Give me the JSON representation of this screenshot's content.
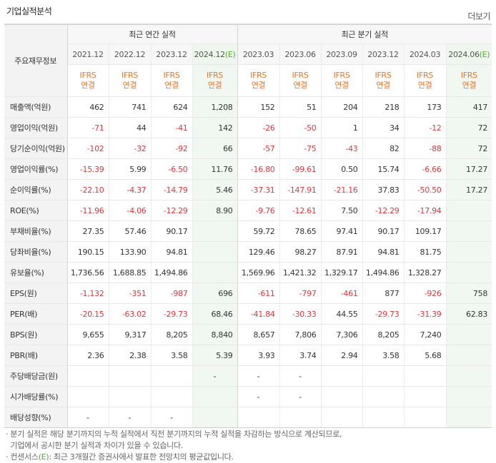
{
  "title": "기업실적분석",
  "more_label": "더보기",
  "header": {
    "corner": "주요재무정보",
    "annual_group": "최근 연간 실적",
    "quarter_group": "최근 분기 실적",
    "annual_periods": [
      "2021.12",
      "2022.12",
      "2023.12",
      "2024.12"
    ],
    "annual_estimate_mark": "(E)",
    "quarter_periods": [
      "2023.03",
      "2023.06",
      "2023.09",
      "2023.12",
      "2024.03",
      "2024.06"
    ],
    "quarter_estimate_mark": "(E)",
    "ifrs_line1": "IFRS",
    "ifrs_line2": "연결"
  },
  "rows": [
    {
      "label": "매출액(억원)",
      "values": [
        "462",
        "741",
        "624",
        "1,208",
        "152",
        "51",
        "204",
        "218",
        "173",
        "417"
      ]
    },
    {
      "label": "영업이익(억원)",
      "values": [
        "-71",
        "44",
        "-41",
        "142",
        "-26",
        "-50",
        "1",
        "34",
        "-12",
        "72"
      ]
    },
    {
      "label": "당기순이익(억원)",
      "values": [
        "-102",
        "-32",
        "-92",
        "66",
        "-57",
        "-75",
        "-43",
        "82",
        "-88",
        "72"
      ]
    },
    {
      "label": "영업이익률(%)",
      "values": [
        "-15.39",
        "5.99",
        "-6.50",
        "11.76",
        "-16.80",
        "-99.61",
        "0.50",
        "15.74",
        "-6.66",
        "17.27"
      ]
    },
    {
      "label": "순이익률(%)",
      "values": [
        "-22.10",
        "-4.37",
        "-14.79",
        "5.46",
        "-37.31",
        "-147.91",
        "-21.16",
        "37.83",
        "-50.50",
        "17.27"
      ]
    },
    {
      "label": "ROE(%)",
      "values": [
        "-11.96",
        "-4.06",
        "-12.29",
        "8.90",
        "-9.76",
        "-12.61",
        "7.50",
        "-12.29",
        "-17.94",
        ""
      ]
    },
    {
      "label": "부채비율(%)",
      "values": [
        "27.35",
        "57.46",
        "90.17",
        "",
        "59.72",
        "78.65",
        "97.41",
        "90.17",
        "109.17",
        ""
      ]
    },
    {
      "label": "당좌비율(%)",
      "values": [
        "190.15",
        "133.90",
        "94.81",
        "",
        "129.46",
        "98.27",
        "87.91",
        "94.81",
        "81.75",
        ""
      ]
    },
    {
      "label": "유보율(%)",
      "values": [
        "1,736.56",
        "1,688.85",
        "1,494.86",
        "",
        "1,569.96",
        "1,421.32",
        "1,329.17",
        "1,494.86",
        "1,328.27",
        ""
      ]
    },
    {
      "label": "EPS(원)",
      "values": [
        "-1,132",
        "-351",
        "-987",
        "696",
        "-611",
        "-797",
        "-461",
        "877",
        "-926",
        "758"
      ]
    },
    {
      "label": "PER(배)",
      "values": [
        "-20.15",
        "-63.02",
        "-29.73",
        "68.46",
        "-41.84",
        "-30.33",
        "44.55",
        "-29.73",
        "-31.39",
        "62.83"
      ]
    },
    {
      "label": "BPS(원)",
      "values": [
        "9,655",
        "9,317",
        "8,205",
        "8,840",
        "8,657",
        "7,806",
        "7,306",
        "8,205",
        "7,240",
        ""
      ]
    },
    {
      "label": "PBR(배)",
      "values": [
        "2.36",
        "2.38",
        "3.58",
        "5.39",
        "3.93",
        "3.74",
        "2.94",
        "3.58",
        "5.68",
        ""
      ]
    },
    {
      "label": "주당배당금(원)",
      "values": [
        "",
        "",
        "",
        "-",
        "-",
        "-",
        "",
        "",
        "",
        ""
      ]
    },
    {
      "label": "시가배당률(%)",
      "values": [
        "",
        "",
        "",
        "",
        "-",
        "-",
        "",
        "",
        "",
        ""
      ]
    },
    {
      "label": "배당성향(%)",
      "values": [
        "-",
        "-",
        "-",
        "",
        "",
        "",
        "",
        "",
        "",
        ""
      ]
    }
  ],
  "notes": [
    "· 분기 실적은 해당 분기까지의 누적 실적에서 직전 분기까지의 누적 실적을 차감하는 방식으로 계산되므로,",
    "  기업에서 공시한 분기 실적과 차이가 있을 수 있습니다.",
    "· 컨센서스",
    "(E)",
    ": 최근 3개월간 증권사에서 발표한 전망치의 평균값입니다."
  ]
}
